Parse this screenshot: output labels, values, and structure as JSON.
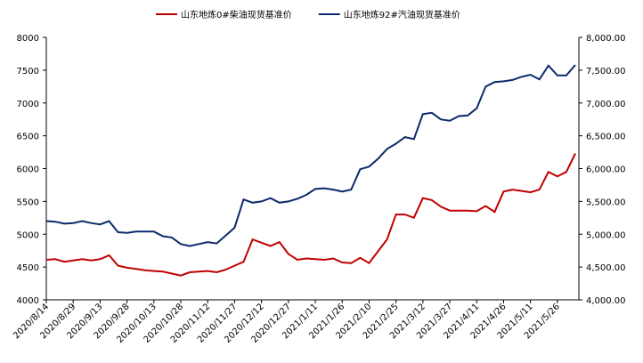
{
  "chart_data": {
    "type": "line",
    "categories": [
      "2020/8/14",
      null,
      null,
      "2020/8/29",
      null,
      null,
      "2020/9/13",
      null,
      null,
      "2020/9/28",
      null,
      null,
      "2020/10/13",
      null,
      null,
      "2020/10/28",
      null,
      null,
      "2020/11/12",
      null,
      null,
      "2020/11/27",
      null,
      null,
      "2020/12/12",
      null,
      null,
      "2020/12/27",
      null,
      null,
      "2021/1/11",
      null,
      null,
      "2021/1/26",
      null,
      null,
      "2021/2/10",
      null,
      null,
      "2021/2/25",
      null,
      null,
      "2021/3/12",
      null,
      null,
      "2021/3/27",
      null,
      null,
      "2021/4/11",
      null,
      null,
      "2021/4/26",
      null,
      null,
      "2021/5/11",
      null,
      null,
      "2021/5/26",
      null,
      null
    ],
    "series": [
      {
        "name": "山东地炼0#柴油现货基准价",
        "color": "#c00000",
        "values": [
          4610,
          4620,
          4580,
          4600,
          4620,
          4600,
          4620,
          4680,
          4520,
          4490,
          4470,
          4450,
          4440,
          4430,
          4400,
          4370,
          4420,
          4430,
          4440,
          4420,
          4460,
          4520,
          4580,
          4920,
          4870,
          4820,
          4880,
          4700,
          4610,
          4630,
          4620,
          4610,
          4630,
          4570,
          4560,
          4640,
          4560,
          4740,
          4920,
          5300,
          5300,
          5250,
          5550,
          5520,
          5420,
          5360,
          5360,
          5360,
          5350,
          5430,
          5340,
          5650,
          5680,
          5660,
          5640,
          5680,
          5950,
          5880,
          5950,
          6230
        ]
      },
      {
        "name": "山东地炼92#汽油现货基准价",
        "color": "#0b2a6b",
        "axis": "y2",
        "values": [
          5200,
          5190,
          5160,
          5170,
          5200,
          5170,
          5150,
          5200,
          5030,
          5020,
          5040,
          5040,
          5040,
          4970,
          4950,
          4850,
          4820,
          4850,
          4880,
          4860,
          4980,
          5100,
          5530,
          5480,
          5500,
          5550,
          5480,
          5500,
          5540,
          5600,
          5690,
          5700,
          5680,
          5650,
          5680,
          5990,
          6030,
          6150,
          6300,
          6380,
          6480,
          6450,
          6830,
          6850,
          6750,
          6730,
          6800,
          6810,
          6920,
          7250,
          7320,
          7330,
          7350,
          7400,
          7430,
          7360,
          7570,
          7420,
          7420,
          7580
        ]
      }
    ],
    "ylim": [
      4000,
      8000
    ],
    "yticks": [
      4000,
      4500,
      5000,
      5500,
      6000,
      6500,
      7000,
      7500,
      8000
    ],
    "y2lim": [
      4000,
      8000
    ],
    "y2ticks": [
      {
        "value": 4000,
        "label": "4,000.00"
      },
      {
        "value": 4500,
        "label": "4,500.00"
      },
      {
        "value": 5000,
        "label": "5,000.00"
      },
      {
        "value": 5500,
        "label": "5,500.00"
      },
      {
        "value": 6000,
        "label": "6,000.00"
      },
      {
        "value": 6500,
        "label": "6,500.00"
      },
      {
        "value": 7000,
        "label": "7,000.00"
      },
      {
        "value": 7500,
        "label": "7,500.00"
      },
      {
        "value": 8000,
        "label": "8,000.00"
      }
    ],
    "legend": "top",
    "grid": false
  }
}
